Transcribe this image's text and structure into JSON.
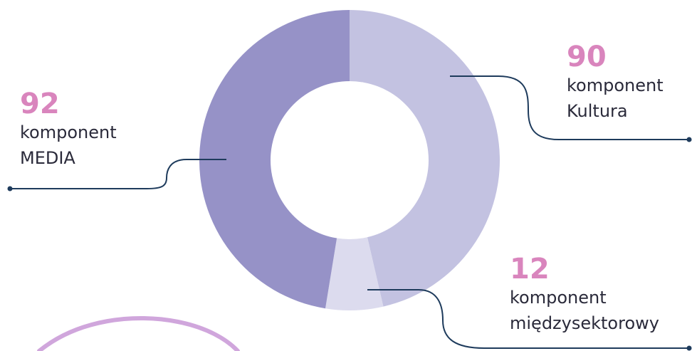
{
  "chart_data": {
    "type": "pie",
    "variant": "donut",
    "categories": [
      "komponent Kultura",
      "komponent międzysektorowy",
      "komponent MEDIA"
    ],
    "values": [
      90,
      12,
      92
    ],
    "colors": [
      "#c3c2e1",
      "#dcdbee",
      "#9692c7"
    ]
  },
  "labels": {
    "kultura": {
      "value": "90",
      "line1": "komponent",
      "line2": "Kultura"
    },
    "miedzysektorowy": {
      "value": "12",
      "line1": "komponent",
      "line2": "międzysektorowy"
    },
    "media": {
      "value": "92",
      "line1": "komponent",
      "line2": "MEDIA"
    }
  },
  "colors": {
    "value_text": "#d985bd",
    "leader_line": "#1e3b5c",
    "decorative_curve": "#d0a6dc"
  }
}
